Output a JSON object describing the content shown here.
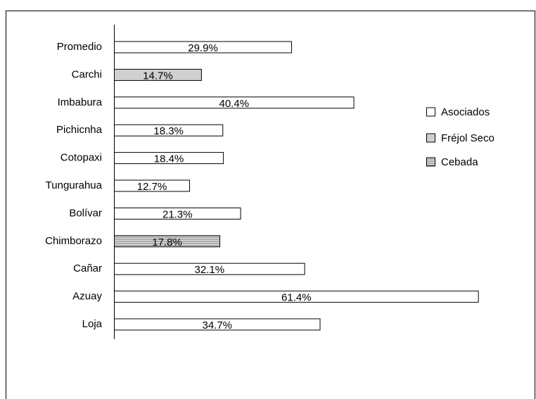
{
  "chart_data": {
    "type": "bar",
    "orientation": "horizontal",
    "categories": [
      "Promedio",
      "Carchi",
      "Imbabura",
      "Pichicnha",
      "Cotopaxi",
      "Tungurahua",
      "Bolívar",
      "Chimborazo",
      "Cañar",
      "Azuay",
      "Loja"
    ],
    "series": [
      {
        "name": "Asociados",
        "color": "#ffffff",
        "values": [
          29.9,
          null,
          40.4,
          18.3,
          18.4,
          12.7,
          21.3,
          null,
          32.1,
          61.4,
          34.7
        ],
        "value_labels": [
          "29.9%",
          null,
          "40.4%",
          "18.3%",
          "18.4%",
          "12.7%",
          "21.3%",
          null,
          "32.1%",
          "61.4%",
          "34.7%"
        ]
      },
      {
        "name": "Fréjol Seco",
        "color": "#d0d0d0",
        "values": [
          null,
          14.7,
          null,
          null,
          null,
          null,
          null,
          null,
          null,
          null,
          null
        ],
        "value_labels": [
          null,
          "14.7%",
          null,
          null,
          null,
          null,
          null,
          null,
          null,
          null,
          null
        ]
      },
      {
        "name": "Cebada",
        "color": "#999999",
        "pattern": "horizontal-lines",
        "values": [
          null,
          null,
          null,
          null,
          null,
          null,
          null,
          17.8,
          null,
          null,
          null
        ],
        "value_labels": [
          null,
          null,
          null,
          null,
          null,
          null,
          null,
          "17.8%",
          null,
          null,
          null
        ]
      }
    ],
    "legend": "right"
  }
}
